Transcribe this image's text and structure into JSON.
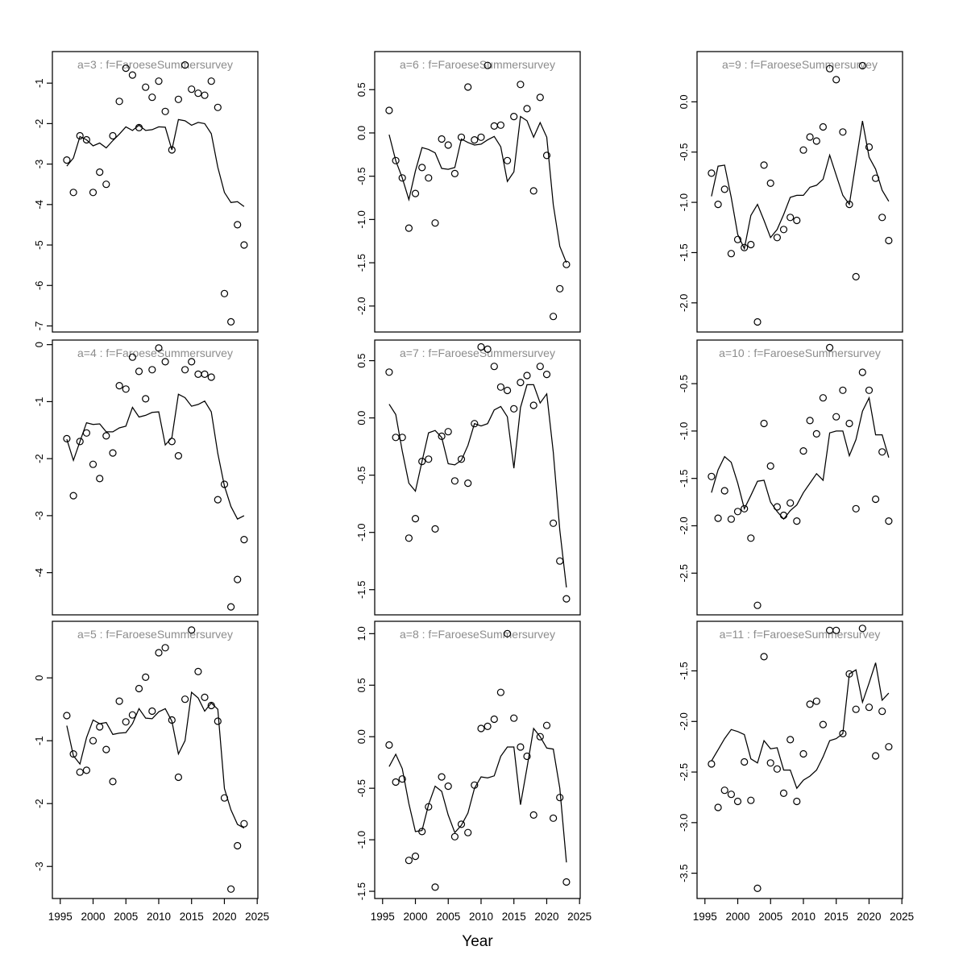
{
  "figure": {
    "xlabel": "Year",
    "xlim": [
      1993.8,
      2025.1
    ],
    "x_ticks": [
      1995,
      2000,
      2005,
      2010,
      2015,
      2020,
      2025
    ],
    "x_tick_labels": [
      "1995",
      "2000",
      "2005",
      "2010",
      "2015",
      "2020",
      "2025"
    ],
    "years": [
      1996,
      1997,
      1998,
      1999,
      2000,
      2001,
      2002,
      2003,
      2004,
      2005,
      2006,
      2007,
      2008,
      2009,
      2010,
      2011,
      2012,
      2013,
      2014,
      2015,
      2016,
      2017,
      2018,
      2019,
      2020,
      2021,
      2022,
      2023
    ],
    "title_color": "#8c8c8c",
    "axis_color": "#000000",
    "background": "#ffffff",
    "legend": "none",
    "grid": "off"
  },
  "chart_data": [
    {
      "id": "a3",
      "type": "scatter+line",
      "grid": {
        "row": 0,
        "col": 0
      },
      "title": "a=3 : f=FaroeseSummersurvey",
      "ylim": [
        -7.15,
        -0.22
      ],
      "yticks": [
        -7,
        -6,
        -5,
        -4,
        -3,
        -2,
        -1
      ],
      "ytick_labels": [
        "-7",
        "-6",
        "-5",
        "-4",
        "-3",
        "-2",
        "-1"
      ],
      "scatter": [
        -2.9,
        -3.7,
        -2.3,
        -2.4,
        -3.7,
        -3.2,
        -3.5,
        -2.3,
        -1.45,
        -0.63,
        -0.8,
        -2.1,
        -1.1,
        -1.35,
        -0.95,
        -1.7,
        -2.65,
        -1.4,
        -0.55,
        -1.15,
        -1.25,
        -1.3,
        -0.95,
        -1.6,
        -6.2,
        -6.9,
        -4.5,
        -5.0
      ],
      "line": [
        -3.05,
        -2.85,
        -2.32,
        -2.4,
        -2.55,
        -2.48,
        -2.6,
        -2.42,
        -2.26,
        -2.08,
        -2.17,
        -2.04,
        -2.17,
        -2.15,
        -2.08,
        -2.09,
        -2.65,
        -1.9,
        -1.93,
        -2.04,
        -1.97,
        -2.0,
        -2.25,
        -3.08,
        -3.7,
        -3.95,
        -3.93,
        -4.05
      ]
    },
    {
      "id": "a4",
      "type": "scatter+line",
      "grid": {
        "row": 1,
        "col": 0
      },
      "title": "a=4 : f=FaroeseSummersurvey",
      "ylim": [
        -4.74,
        0.08
      ],
      "yticks": [
        -4,
        -3,
        -2,
        -1,
        0
      ],
      "ytick_labels": [
        "-4",
        "-3",
        "-2",
        "-1",
        "0"
      ],
      "scatter": [
        -1.65,
        -2.65,
        -1.7,
        -1.55,
        -2.1,
        -2.35,
        -1.6,
        -1.9,
        -0.72,
        -0.78,
        -0.22,
        -0.47,
        -0.95,
        -0.44,
        -0.06,
        -0.3,
        -1.7,
        -1.95,
        -0.44,
        -0.3,
        -0.52,
        -0.52,
        -0.57,
        -2.72,
        -2.45,
        -4.6,
        -4.12,
        -3.42
      ],
      "line": [
        -1.66,
        -2.03,
        -1.7,
        -1.37,
        -1.4,
        -1.39,
        -1.53,
        -1.53,
        -1.46,
        -1.43,
        -1.1,
        -1.27,
        -1.24,
        -1.19,
        -1.18,
        -1.76,
        -1.63,
        -0.87,
        -0.93,
        -1.08,
        -1.05,
        -0.99,
        -1.18,
        -1.91,
        -2.48,
        -2.84,
        -3.06,
        -3.0
      ]
    },
    {
      "id": "a5",
      "type": "scatter+line",
      "grid": {
        "row": 2,
        "col": 0
      },
      "title": "a=5 : f=FaroeseSummersurvey",
      "ylim": [
        -3.51,
        0.9
      ],
      "yticks": [
        -3,
        -2,
        -1,
        0
      ],
      "ytick_labels": [
        "-3",
        "-2",
        "-1",
        "0"
      ],
      "scatter": [
        -0.6,
        -1.21,
        -1.5,
        -1.47,
        -1.0,
        -0.78,
        -1.14,
        -1.65,
        -0.37,
        -0.7,
        -0.59,
        -0.17,
        0.01,
        -0.53,
        0.4,
        0.48,
        -0.67,
        -1.58,
        -0.34,
        0.76,
        0.1,
        -0.31,
        -0.44,
        -0.69,
        -1.91,
        -3.36,
        -2.67,
        -2.32
      ],
      "line": [
        -0.76,
        -1.24,
        -1.37,
        -0.95,
        -0.67,
        -0.73,
        -0.71,
        -0.9,
        -0.88,
        -0.87,
        -0.73,
        -0.49,
        -0.64,
        -0.65,
        -0.54,
        -0.49,
        -0.69,
        -1.21,
        -1.0,
        -0.23,
        -0.32,
        -0.53,
        -0.4,
        -0.5,
        -1.76,
        -2.1,
        -2.33,
        -2.39
      ]
    },
    {
      "id": "a6",
      "type": "scatter+line",
      "grid": {
        "row": 0,
        "col": 1
      },
      "title": "a=6 : f=FaroeseSummersurvey",
      "ylim": [
        -2.3,
        0.94
      ],
      "yticks": [
        -2.0,
        -1.5,
        -1.0,
        -0.5,
        0.0,
        0.5
      ],
      "ytick_labels": [
        "-2.0",
        "-1.5",
        "-1.0",
        "-0.5",
        "0.0",
        "0.5"
      ],
      "scatter": [
        0.26,
        -0.32,
        -0.52,
        -1.1,
        -0.7,
        -0.4,
        -0.52,
        -1.04,
        -0.07,
        -0.14,
        -0.47,
        -0.05,
        0.53,
        -0.08,
        -0.05,
        0.78,
        0.08,
        0.09,
        -0.32,
        0.19,
        0.56,
        0.28,
        -0.67,
        0.41,
        -0.26,
        -2.12,
        -1.8,
        -1.52
      ],
      "line": [
        -0.02,
        -0.32,
        -0.52,
        -0.77,
        -0.44,
        -0.17,
        -0.19,
        -0.23,
        -0.41,
        -0.42,
        -0.4,
        -0.07,
        -0.11,
        -0.14,
        -0.13,
        -0.08,
        -0.04,
        -0.16,
        -0.56,
        -0.45,
        0.19,
        0.14,
        -0.05,
        0.12,
        -0.05,
        -0.83,
        -1.31,
        -1.5
      ]
    },
    {
      "id": "a7",
      "type": "scatter+line",
      "grid": {
        "row": 1,
        "col": 1
      },
      "title": "a=7 : f=FaroeseSummersurvey",
      "ylim": [
        -1.72,
        0.68
      ],
      "yticks": [
        -1.5,
        -1.0,
        -0.5,
        0.0,
        0.5
      ],
      "ytick_labels": [
        "-1.5",
        "-1.0",
        "-0.5",
        "0.0",
        "0.5"
      ],
      "scatter": [
        0.4,
        -0.17,
        -0.17,
        -1.05,
        -0.88,
        -0.38,
        -0.36,
        -0.97,
        -0.16,
        -0.12,
        -0.55,
        -0.36,
        -0.57,
        -0.05,
        0.62,
        0.6,
        0.45,
        0.27,
        0.24,
        0.08,
        0.31,
        0.37,
        0.11,
        0.45,
        0.38,
        -0.92,
        -1.25,
        -1.58
      ],
      "line": [
        0.12,
        0.03,
        -0.29,
        -0.57,
        -0.64,
        -0.38,
        -0.13,
        -0.11,
        -0.17,
        -0.4,
        -0.41,
        -0.37,
        -0.24,
        -0.05,
        -0.07,
        -0.05,
        0.07,
        0.1,
        0.01,
        -0.44,
        0.09,
        0.29,
        0.29,
        0.13,
        0.21,
        -0.3,
        -0.98,
        -1.48
      ]
    },
    {
      "id": "a8",
      "type": "scatter+line",
      "grid": {
        "row": 2,
        "col": 1
      },
      "title": "a=8 : f=FaroeseSummersurvey",
      "ylim": [
        -1.57,
        1.12
      ],
      "yticks": [
        -1.5,
        -1.0,
        -0.5,
        0.0,
        0.5,
        1.0
      ],
      "ytick_labels": [
        "-1.5",
        "-1.0",
        "-0.5",
        "0.0",
        "0.5",
        "1.0"
      ],
      "scatter": [
        -0.08,
        -0.44,
        -0.41,
        -1.2,
        -1.16,
        -0.92,
        -0.68,
        -1.46,
        -0.39,
        -0.48,
        -0.97,
        -0.85,
        -0.93,
        -0.47,
        0.08,
        0.1,
        0.17,
        0.43,
        1.0,
        0.18,
        -0.1,
        -0.19,
        -0.76,
        0.0,
        0.11,
        -0.79,
        -0.59,
        -1.41
      ],
      "line": [
        -0.29,
        -0.17,
        -0.31,
        -0.65,
        -0.92,
        -0.91,
        -0.66,
        -0.48,
        -0.53,
        -0.76,
        -0.93,
        -0.86,
        -0.74,
        -0.5,
        -0.39,
        -0.4,
        -0.38,
        -0.19,
        -0.1,
        -0.1,
        -0.66,
        -0.3,
        0.08,
        0.0,
        -0.11,
        -0.12,
        -0.5,
        -1.22
      ]
    },
    {
      "id": "a9",
      "type": "scatter+line",
      "grid": {
        "row": 0,
        "col": 2
      },
      "title": "a=9 : f=FaroeseSummersurvey",
      "ylim": [
        -2.29,
        0.5
      ],
      "yticks": [
        -2.0,
        -1.5,
        -1.0,
        -0.5,
        0.0
      ],
      "ytick_labels": [
        "-2.0",
        "-1.5",
        "-1.0",
        "-0.5",
        "0.0"
      ],
      "scatter": [
        -0.71,
        -1.02,
        -0.87,
        -1.51,
        -1.37,
        -1.45,
        -1.42,
        -2.19,
        -0.63,
        -0.81,
        -1.35,
        -1.27,
        -1.15,
        -1.18,
        -0.48,
        -0.35,
        -0.39,
        -0.25,
        0.33,
        0.22,
        -0.3,
        -1.02,
        -1.74,
        0.36,
        -0.45,
        -0.76,
        -1.15,
        -1.38
      ],
      "line": [
        -0.94,
        -0.64,
        -0.63,
        -0.95,
        -1.32,
        -1.46,
        -1.13,
        -1.02,
        -1.18,
        -1.35,
        -1.27,
        -1.12,
        -0.95,
        -0.93,
        -0.93,
        -0.85,
        -0.83,
        -0.77,
        -0.53,
        -0.73,
        -0.93,
        -1.02,
        -0.6,
        -0.19,
        -0.55,
        -0.67,
        -0.88,
        -0.99
      ]
    },
    {
      "id": "a10",
      "type": "scatter+line",
      "grid": {
        "row": 1,
        "col": 2
      },
      "title": "a=10 : f=FaroeseSummersurvey",
      "ylim": [
        -2.94,
        -0.04
      ],
      "yticks": [
        -2.5,
        -2.0,
        -1.5,
        -1.0,
        -0.5
      ],
      "ytick_labels": [
        "-2.5",
        "-2.0",
        "-1.5",
        "-1.0",
        "-0.5"
      ],
      "scatter": [
        -1.48,
        -1.92,
        -1.63,
        -1.93,
        -1.85,
        -1.82,
        -2.13,
        -2.84,
        -0.92,
        -1.37,
        -1.8,
        -1.89,
        -1.76,
        -1.95,
        -1.21,
        -0.89,
        -1.03,
        -0.65,
        -0.12,
        -0.85,
        -0.57,
        -0.92,
        -1.82,
        -0.38,
        -0.57,
        -1.72,
        -1.22,
        -1.95
      ],
      "line": [
        -1.65,
        -1.41,
        -1.27,
        -1.33,
        -1.55,
        -1.82,
        -1.68,
        -1.53,
        -1.52,
        -1.75,
        -1.85,
        -1.93,
        -1.84,
        -1.78,
        -1.65,
        -1.55,
        -1.45,
        -1.52,
        -1.02,
        -1.0,
        -1.0,
        -1.26,
        -1.09,
        -0.79,
        -0.65,
        -1.04,
        -1.04,
        -1.28
      ]
    },
    {
      "id": "a11",
      "type": "scatter+line",
      "grid": {
        "row": 2,
        "col": 2
      },
      "title": "a=11 : f=FaroeseSummersurvey",
      "ylim": [
        -3.75,
        -1.01
      ],
      "yticks": [
        -3.5,
        -3.0,
        -2.5,
        -2.0,
        -1.5
      ],
      "ytick_labels": [
        "-3.5",
        "-3.0",
        "-2.5",
        "-2.0",
        "-1.5"
      ],
      "scatter": [
        -2.42,
        -2.85,
        -2.68,
        -2.72,
        -2.79,
        -2.4,
        -2.78,
        -3.65,
        -1.36,
        -2.41,
        -2.47,
        -2.71,
        -2.18,
        -2.79,
        -2.32,
        -1.83,
        -1.8,
        -2.03,
        -1.1,
        -1.1,
        -2.12,
        -1.53,
        -1.88,
        -1.08,
        -1.86,
        -2.34,
        -1.9,
        -2.25
      ],
      "line": [
        -2.39,
        -2.28,
        -2.17,
        -2.08,
        -2.1,
        -2.13,
        -2.37,
        -2.41,
        -2.19,
        -2.27,
        -2.26,
        -2.48,
        -2.48,
        -2.66,
        -2.58,
        -2.54,
        -2.48,
        -2.35,
        -2.19,
        -2.17,
        -2.12,
        -1.53,
        -1.49,
        -1.81,
        -1.62,
        -1.42,
        -1.79,
        -1.72
      ]
    }
  ]
}
